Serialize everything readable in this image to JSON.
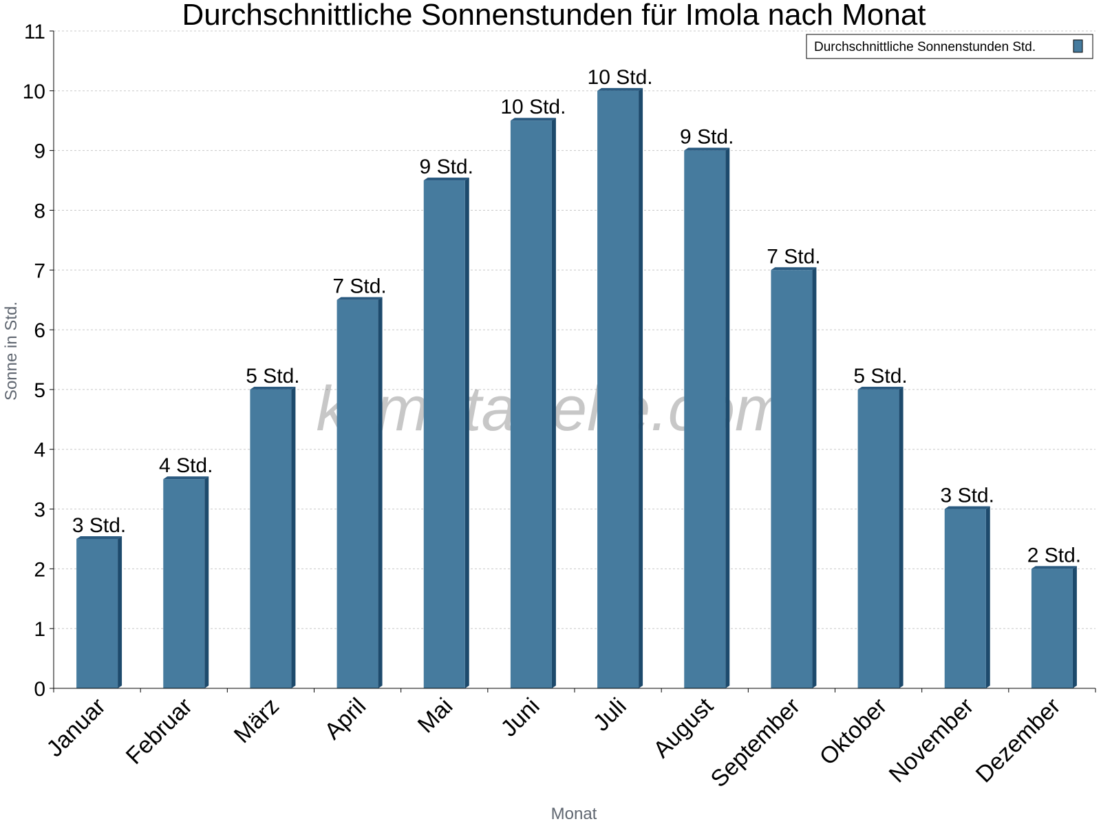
{
  "chart_data": {
    "type": "bar",
    "title": "Durchschnittliche Sonnenstunden für Imola nach Monat",
    "xlabel": "Monat",
    "ylabel": "Sonne in Std.",
    "ylim": [
      0,
      11
    ],
    "yticks": [
      "0",
      "1",
      "2",
      "3",
      "4",
      "5",
      "6",
      "7",
      "8",
      "9",
      "10",
      "11"
    ],
    "grid": true,
    "legend_position": "top-right",
    "categories": [
      "Januar",
      "Februar",
      "März",
      "April",
      "Mai",
      "Juni",
      "Juli",
      "August",
      "September",
      "Oktober",
      "November",
      "Dezember"
    ],
    "series": [
      {
        "name": "Durchschnittliche Sonnenstunden Std.",
        "color": "#467b9e",
        "values": [
          2.5,
          3.5,
          5,
          6.5,
          8.5,
          9.5,
          10,
          9,
          7,
          5,
          3,
          2
        ],
        "labels": [
          "3 Std.",
          "4 Std.",
          "5 Std.",
          "7 Std.",
          "9 Std.",
          "10 Std.",
          "10 Std.",
          "9 Std.",
          "7 Std.",
          "5 Std.",
          "3 Std.",
          "2 Std."
        ]
      }
    ]
  },
  "watermark": "klimatabelle.com",
  "colors": {
    "bar": "#467b9e",
    "bar_side": "#1d4a6c",
    "bar_top": "#2a5a80",
    "grid": "#c8c8c8"
  }
}
